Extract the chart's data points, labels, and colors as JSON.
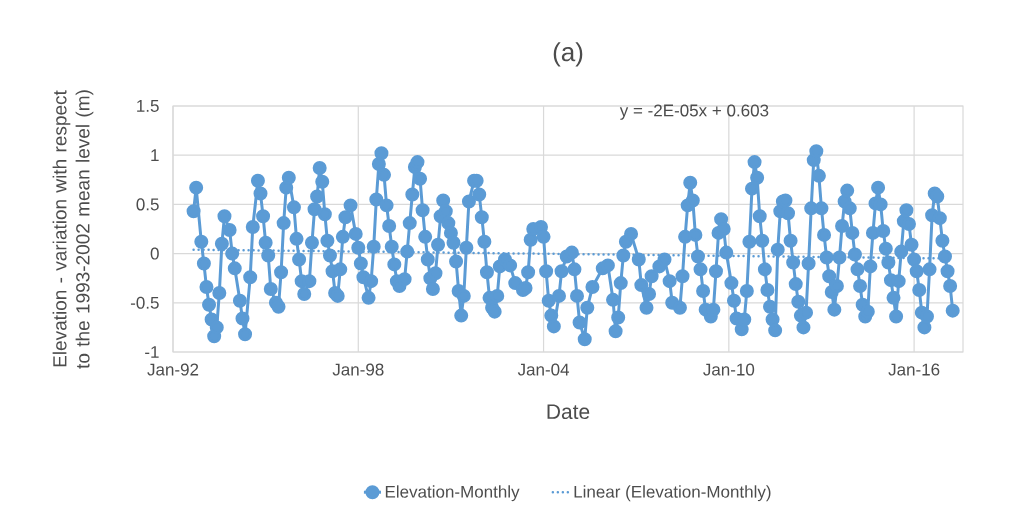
{
  "chart_data": {
    "type": "line",
    "title": "(a)",
    "xlabel": "Date",
    "ylabel": "Elevation  - variation with respect to the 1993-2002 mean level (m)",
    "annotations": [
      "y = -2E-05x + 0.603"
    ],
    "xlim": [
      "1992-01",
      "2017-08"
    ],
    "ylim": [
      -1,
      1.5
    ],
    "xticks": [
      {
        "value": "1992-01",
        "label": "Jan-92"
      },
      {
        "value": "1998-01",
        "label": "Jan-98"
      },
      {
        "value": "2004-01",
        "label": "Jan-04"
      },
      {
        "value": "2010-01",
        "label": "Jan-10"
      },
      {
        "value": "2016-01",
        "label": "Jan-16"
      }
    ],
    "yticks": [
      -1,
      -0.5,
      0,
      0.5,
      1,
      1.5
    ],
    "grid": true,
    "legend": "bottom",
    "series": [
      {
        "name": "Elevation-Monthly",
        "color": "#5b9bd5",
        "marker": "circle",
        "line_style": "solid",
        "x": [
          "1992-09",
          "1992-10",
          "1992-12",
          "1993-01",
          "1993-02",
          "1993-03",
          "1993-04",
          "1993-05",
          "1993-06",
          "1993-07",
          "1993-08",
          "1993-09",
          "1993-11",
          "1993-12",
          "1994-01",
          "1994-03",
          "1994-04",
          "1994-05",
          "1994-07",
          "1994-08",
          "1994-10",
          "1994-11",
          "1994-12",
          "1995-01",
          "1995-02",
          "1995-03",
          "1995-05",
          "1995-06",
          "1995-07",
          "1995-08",
          "1995-09",
          "1995-10",
          "1995-12",
          "1996-01",
          "1996-02",
          "1996-03",
          "1996-04",
          "1996-06",
          "1996-07",
          "1996-08",
          "1996-09",
          "1996-10",
          "1996-11",
          "1996-12",
          "1997-01",
          "1997-02",
          "1997-03",
          "1997-04",
          "1997-05",
          "1997-06",
          "1997-07",
          "1997-08",
          "1997-10",
          "1997-12",
          "1998-01",
          "1998-02",
          "1998-03",
          "1998-05",
          "1998-06",
          "1998-07",
          "1998-08",
          "1998-09",
          "1998-10",
          "1998-11",
          "1998-12",
          "1999-01",
          "1999-02",
          "1999-03",
          "1999-04",
          "1999-05",
          "1999-07",
          "1999-08",
          "1999-09",
          "1999-10",
          "1999-11",
          "1999-12",
          "2000-01",
          "2000-02",
          "2000-03",
          "2000-04",
          "2000-05",
          "2000-06",
          "2000-07",
          "2000-08",
          "2000-09",
          "2000-10",
          "2000-11",
          "2000-12",
          "2001-01",
          "2001-02",
          "2001-03",
          "2001-04",
          "2001-05",
          "2001-06",
          "2001-07",
          "2001-08",
          "2001-10",
          "2001-11",
          "2001-12",
          "2002-01",
          "2002-02",
          "2002-03",
          "2002-04",
          "2002-05",
          "2002-06",
          "2002-07",
          "2002-08",
          "2002-10",
          "2002-12",
          "2003-02",
          "2003-05",
          "2003-06",
          "2003-07",
          "2003-08",
          "2003-09",
          "2003-12",
          "2004-01",
          "2004-02",
          "2004-03",
          "2004-04",
          "2004-05",
          "2004-07",
          "2004-08",
          "2004-10",
          "2004-12",
          "2005-01",
          "2005-02",
          "2005-03",
          "2005-05",
          "2005-06",
          "2005-08",
          "2005-12",
          "2006-02",
          "2006-04",
          "2006-05",
          "2006-06",
          "2006-07",
          "2006-08",
          "2006-09",
          "2006-11",
          "2007-02",
          "2007-03",
          "2007-05",
          "2007-06",
          "2007-07",
          "2007-10",
          "2007-12",
          "2008-02",
          "2008-03",
          "2008-06",
          "2008-07",
          "2008-08",
          "2008-09",
          "2008-10",
          "2008-11",
          "2008-12",
          "2009-01",
          "2009-02",
          "2009-03",
          "2009-04",
          "2009-06",
          "2009-07",
          "2009-08",
          "2009-09",
          "2009-10",
          "2009-11",
          "2009-12",
          "2010-02",
          "2010-03",
          "2010-04",
          "2010-06",
          "2010-07",
          "2010-08",
          "2010-09",
          "2010-10",
          "2010-11",
          "2010-12",
          "2011-01",
          "2011-02",
          "2011-03",
          "2011-04",
          "2011-05",
          "2011-06",
          "2011-07",
          "2011-08",
          "2011-09",
          "2011-10",
          "2011-11",
          "2011-12",
          "2012-01",
          "2012-02",
          "2012-03",
          "2012-04",
          "2012-05",
          "2012-06",
          "2012-07",
          "2012-08",
          "2012-09",
          "2012-10",
          "2012-11",
          "2012-12",
          "2013-01",
          "2013-02",
          "2013-03",
          "2013-04",
          "2013-05",
          "2013-06",
          "2013-07",
          "2013-08",
          "2013-09",
          "2013-10",
          "2013-11",
          "2013-12",
          "2014-01",
          "2014-02",
          "2014-03",
          "2014-04",
          "2014-05",
          "2014-06",
          "2014-07",
          "2014-08",
          "2014-09",
          "2014-10",
          "2014-11",
          "2014-12",
          "2015-01",
          "2015-02",
          "2015-03",
          "2015-04",
          "2015-05",
          "2015-06",
          "2015-07",
          "2015-08",
          "2015-09",
          "2015-10",
          "2015-11",
          "2015-12",
          "2016-01",
          "2016-02",
          "2016-03",
          "2016-04",
          "2016-05",
          "2016-06",
          "2016-07",
          "2016-08",
          "2016-09",
          "2016-10",
          "2016-11",
          "2016-12",
          "2017-01",
          "2017-02",
          "2017-03",
          "2017-04"
        ],
        "values": [
          0.43,
          0.67,
          0.12,
          -0.1,
          -0.34,
          -0.52,
          -0.67,
          -0.84,
          -0.75,
          -0.4,
          0.1,
          0.38,
          0.24,
          0.0,
          -0.15,
          -0.48,
          -0.66,
          -0.82,
          -0.24,
          0.27,
          0.74,
          0.61,
          0.38,
          0.11,
          -0.02,
          -0.36,
          -0.5,
          -0.54,
          -0.19,
          0.31,
          0.67,
          0.77,
          0.47,
          0.15,
          -0.06,
          -0.28,
          -0.41,
          -0.28,
          0.11,
          0.45,
          0.58,
          0.87,
          0.73,
          0.4,
          0.13,
          -0.02,
          -0.18,
          -0.4,
          -0.43,
          -0.16,
          0.17,
          0.37,
          0.49,
          0.2,
          0.06,
          -0.1,
          -0.24,
          -0.45,
          -0.28,
          0.07,
          0.55,
          0.91,
          1.02,
          0.8,
          0.49,
          0.28,
          0.07,
          -0.11,
          -0.28,
          -0.33,
          -0.26,
          0.02,
          0.31,
          0.6,
          0.88,
          0.93,
          0.76,
          0.44,
          0.17,
          -0.06,
          -0.25,
          -0.36,
          -0.2,
          0.09,
          0.38,
          0.54,
          0.43,
          0.31,
          0.21,
          0.11,
          -0.08,
          -0.38,
          -0.63,
          -0.43,
          0.06,
          0.53,
          0.74,
          0.74,
          0.6,
          0.37,
          0.12,
          -0.19,
          -0.45,
          -0.55,
          -0.59,
          -0.43,
          -0.13,
          -0.06,
          -0.12,
          -0.3,
          -0.37,
          -0.35,
          -0.19,
          0.14,
          0.25,
          0.27,
          0.17,
          -0.18,
          -0.48,
          -0.63,
          -0.74,
          -0.43,
          -0.18,
          -0.03,
          0.01,
          -0.16,
          -0.43,
          -0.7,
          -0.87,
          -0.55,
          -0.34,
          -0.15,
          -0.12,
          -0.47,
          -0.79,
          -0.65,
          -0.3,
          -0.02,
          0.12,
          0.2,
          -0.06,
          -0.32,
          -0.55,
          -0.41,
          -0.23,
          -0.13,
          -0.06,
          -0.28,
          -0.5,
          -0.55,
          -0.23,
          0.17,
          0.49,
          0.72,
          0.54,
          0.19,
          -0.03,
          -0.16,
          -0.38,
          -0.57,
          -0.64,
          -0.57,
          -0.18,
          0.21,
          0.35,
          0.25,
          0.01,
          -0.3,
          -0.48,
          -0.66,
          -0.77,
          -0.67,
          -0.38,
          0.12,
          0.66,
          0.93,
          0.77,
          0.38,
          0.13,
          -0.16,
          -0.37,
          -0.54,
          -0.67,
          -0.78,
          0.04,
          0.43,
          0.53,
          0.54,
          0.41,
          0.13,
          -0.09,
          -0.31,
          -0.49,
          -0.63,
          -0.75,
          -0.6,
          -0.1,
          0.46,
          0.95,
          1.04,
          0.79,
          0.46,
          0.19,
          -0.04,
          -0.23,
          -0.39,
          -0.57,
          -0.33,
          -0.04,
          0.28,
          0.53,
          0.64,
          0.46,
          0.21,
          -0.01,
          -0.16,
          -0.33,
          -0.52,
          -0.64,
          -0.59,
          -0.13,
          0.21,
          0.51,
          0.67,
          0.5,
          0.23,
          0.05,
          -0.09,
          -0.27,
          -0.45,
          -0.64,
          -0.28,
          0.02,
          0.33,
          0.44,
          0.3,
          0.09,
          -0.06,
          -0.18,
          -0.37,
          -0.6,
          -0.75,
          -0.64,
          -0.16,
          0.39,
          0.61,
          0.58,
          0.36,
          0.13,
          -0.03,
          -0.18,
          -0.33,
          -0.58
        ]
      },
      {
        "name": "Linear (Elevation-Monthly)",
        "color": "#5b9bd5",
        "marker": "none",
        "line_style": "dotted",
        "x": [
          "1992-09",
          "2017-04"
        ],
        "values": [
          0.04,
          -0.05
        ]
      }
    ]
  }
}
